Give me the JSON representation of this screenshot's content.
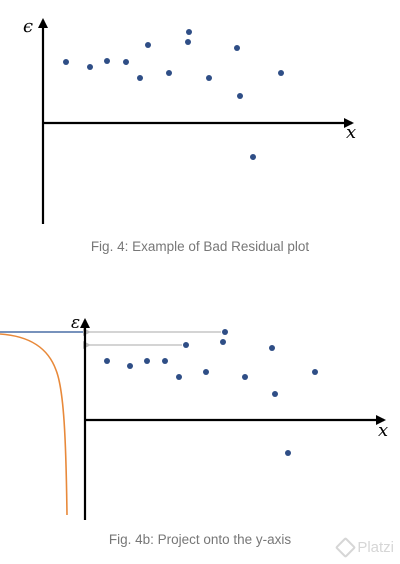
{
  "chart_data": [
    {
      "type": "scatter",
      "title": "",
      "caption": "Fig. 4: Example of Bad Residual plot",
      "xlabel": "x",
      "ylabel": "ϵ",
      "grid": false,
      "legend": "none",
      "point_color": "#2f4e86",
      "xlim": [
        0,
        310
      ],
      "ylim": [
        -100,
        100
      ],
      "points": [
        {
          "x": 23,
          "y": 61
        },
        {
          "x": 47,
          "y": 56
        },
        {
          "x": 64,
          "y": 62
        },
        {
          "x": 83,
          "y": 61
        },
        {
          "x": 97,
          "y": 45
        },
        {
          "x": 105,
          "y": 78
        },
        {
          "x": 126,
          "y": 50
        },
        {
          "x": 145,
          "y": 81
        },
        {
          "x": 146,
          "y": 91
        },
        {
          "x": 166,
          "y": 45
        },
        {
          "x": 194,
          "y": 75
        },
        {
          "x": 197,
          "y": 27
        },
        {
          "x": 210,
          "y": -34
        },
        {
          "x": 238,
          "y": 50
        }
      ]
    },
    {
      "type": "scatter",
      "title": "",
      "caption": "Fig. 4b: Project onto the y-axis",
      "xlabel": "x",
      "ylabel": "ε",
      "grid": false,
      "legend": "none",
      "point_color": "#2f4e86",
      "projection_color": "#bbbbbb",
      "curve_color": "#e8893a",
      "left_line_color": "#4a6fa5",
      "xlim": [
        0,
        300
      ],
      "ylim": [
        -100,
        100
      ],
      "points": [
        {
          "x": 22,
          "y": 59
        },
        {
          "x": 45,
          "y": 54
        },
        {
          "x": 62,
          "y": 59
        },
        {
          "x": 80,
          "y": 59
        },
        {
          "x": 94,
          "y": 43
        },
        {
          "x": 101,
          "y": 75
        },
        {
          "x": 121,
          "y": 48
        },
        {
          "x": 138,
          "y": 78
        },
        {
          "x": 140,
          "y": 88
        },
        {
          "x": 160,
          "y": 43
        },
        {
          "x": 187,
          "y": 72
        },
        {
          "x": 190,
          "y": 26
        },
        {
          "x": 203,
          "y": -33
        },
        {
          "x": 230,
          "y": 48
        }
      ],
      "projection_points": [
        {
          "x": 101,
          "y": 75
        },
        {
          "x": 140,
          "y": 88
        }
      ]
    }
  ],
  "watermark": {
    "text": "Platzi"
  }
}
